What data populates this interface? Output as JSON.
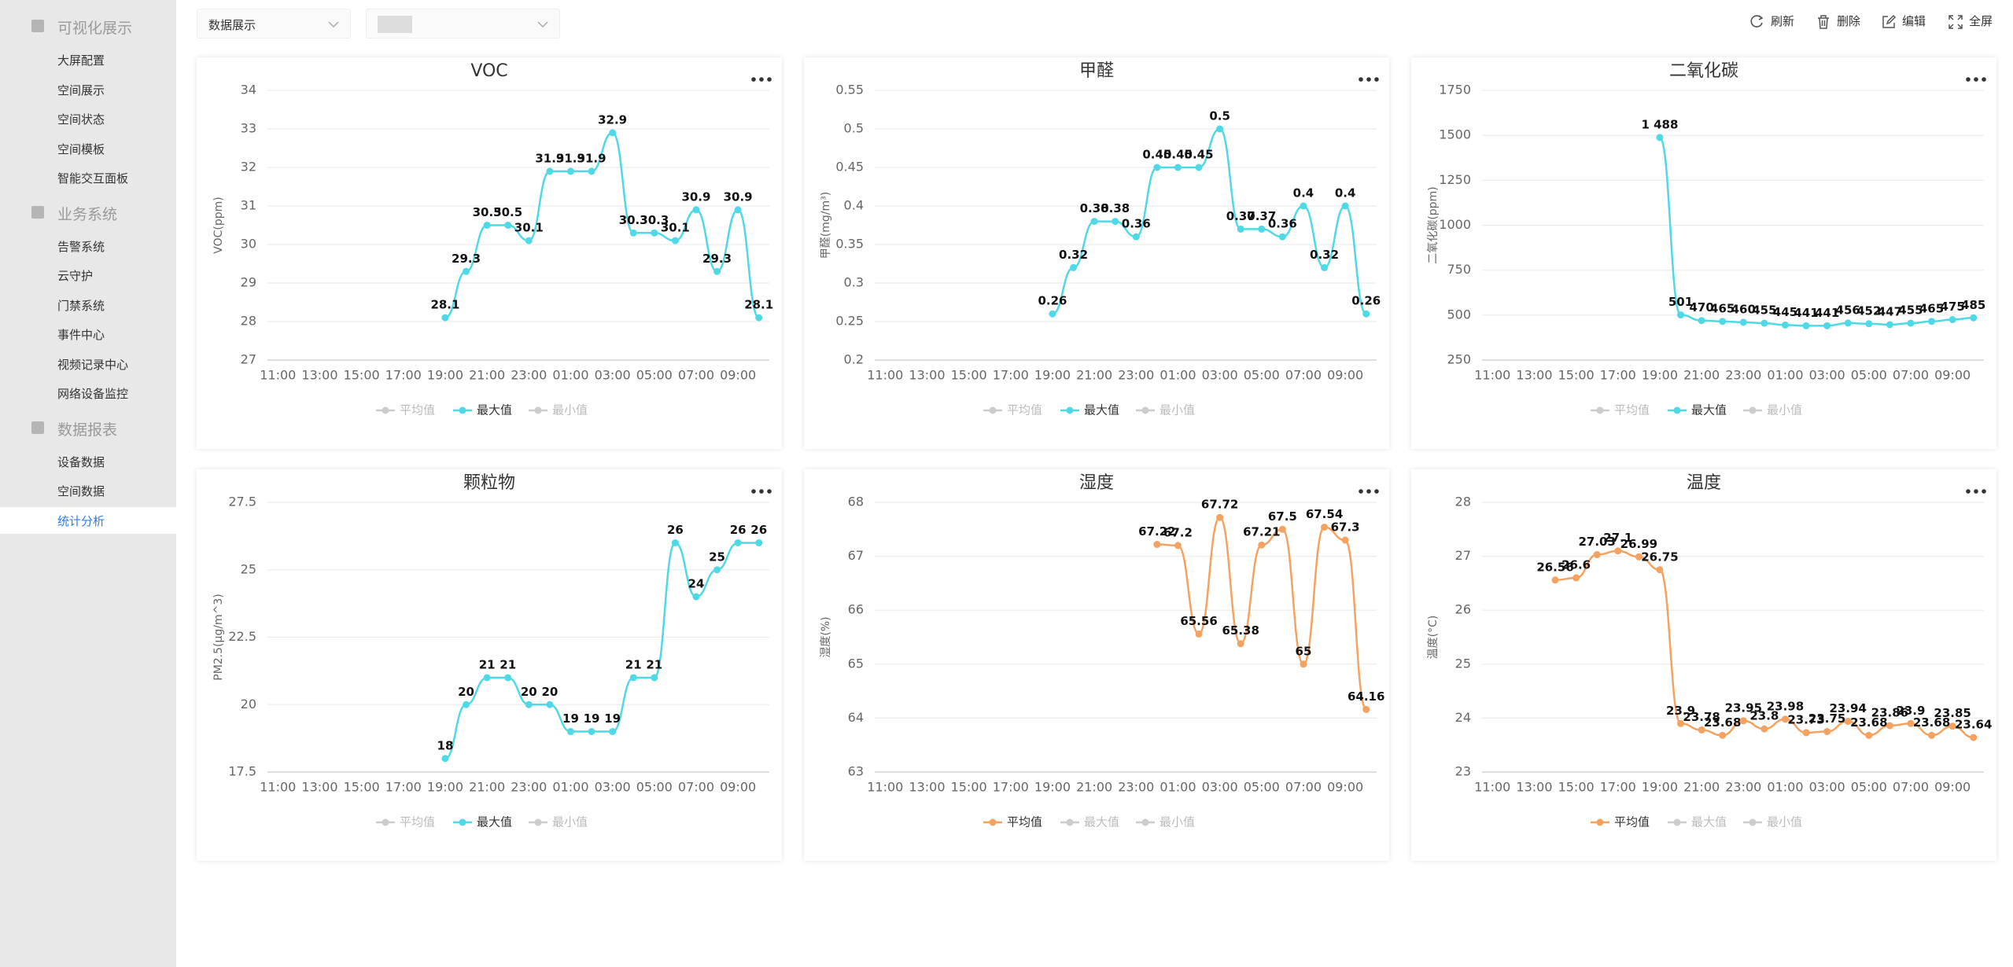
{
  "sidebar": [
    {
      "title": "可视化展示",
      "items": [
        {
          "label": "大屏配置"
        },
        {
          "label": "空间展示"
        },
        {
          "label": "空间状态"
        },
        {
          "label": "空间模板"
        },
        {
          "label": "智能交互面板"
        }
      ]
    },
    {
      "title": "业务系统",
      "items": [
        {
          "label": "告警系统"
        },
        {
          "label": "云守护"
        },
        {
          "label": "门禁系统"
        },
        {
          "label": "事件中心"
        },
        {
          "label": "视频记录中心"
        },
        {
          "label": "网络设备监控"
        }
      ]
    },
    {
      "title": "数据报表",
      "items": [
        {
          "label": "设备数据"
        },
        {
          "label": "空间数据"
        },
        {
          "label": "统计分析",
          "active": true
        }
      ]
    }
  ],
  "toolbar": {
    "select": "数据展示",
    "actions": [
      "刷新",
      "删除",
      "编辑",
      "全屏"
    ]
  },
  "chart_data": [
    {
      "type": "line",
      "title": "VOC",
      "ylabel": "VOC(ppm)",
      "legend": [
        "平均值",
        "最大值",
        "最小值"
      ],
      "categories": [
        "11:00",
        null,
        "13:00",
        null,
        "15:00",
        null,
        "17:00",
        null,
        "19:00",
        null,
        "21:00",
        null,
        "23:00",
        null,
        "01:00",
        null,
        "03:00",
        null,
        "05:00",
        null,
        "07:00",
        null,
        "09:00",
        null
      ],
      "series": [
        {
          "name": "最大值",
          "color": "#4fd9e6",
          "values": [
            null,
            null,
            null,
            null,
            null,
            null,
            null,
            null,
            28.1,
            29.3,
            30.5,
            30.5,
            30.1,
            31.9,
            31.9,
            31.9,
            32.9,
            30.3,
            30.3,
            30.1,
            30.9,
            29.3,
            30.9,
            28.1
          ]
        }
      ],
      "ylim": [
        27,
        34
      ],
      "yticks": [
        27,
        28,
        29,
        30,
        31,
        32,
        33,
        34
      ],
      "grid": true
    },
    {
      "type": "line",
      "title": "甲醛",
      "ylabel": "甲醛(mg/m³)",
      "legend": [
        "平均值",
        "最大值",
        "最小值"
      ],
      "categories": [
        "11:00",
        null,
        "13:00",
        null,
        "15:00",
        null,
        "17:00",
        null,
        "19:00",
        null,
        "21:00",
        null,
        "23:00",
        null,
        "01:00",
        null,
        "03:00",
        null,
        "05:00",
        null,
        "07:00",
        null,
        "09:00",
        null
      ],
      "series": [
        {
          "name": "最大值",
          "color": "#4fd9e6",
          "values": [
            null,
            null,
            null,
            null,
            null,
            null,
            null,
            null,
            0.26,
            0.32,
            0.38,
            0.38,
            0.36,
            0.45,
            0.45,
            0.45,
            0.5,
            0.37,
            0.37,
            0.36,
            0.4,
            0.32,
            0.4,
            0.26
          ]
        }
      ],
      "ylim": [
        0.2,
        0.55
      ],
      "yticks": [
        0.2,
        0.25,
        0.3,
        0.35,
        0.4,
        0.45,
        0.5,
        0.55
      ],
      "grid": true
    },
    {
      "type": "line",
      "title": "二氧化碳",
      "ylabel": "二氧化碳(ppm)",
      "legend": [
        "平均值",
        "最大值",
        "最小值"
      ],
      "categories": [
        "11:00",
        null,
        "13:00",
        null,
        "15:00",
        null,
        "17:00",
        null,
        "19:00",
        null,
        "21:00",
        null,
        "23:00",
        null,
        "01:00",
        null,
        "03:00",
        null,
        "05:00",
        null,
        "07:00",
        null,
        "09:00",
        null
      ],
      "series": [
        {
          "name": "最大值",
          "color": "#4fd9e6",
          "values": [
            null,
            null,
            null,
            null,
            null,
            null,
            null,
            null,
            1488,
            501,
            470,
            465,
            460,
            455,
            445,
            441,
            441,
            456,
            452,
            447,
            455,
            465,
            475,
            485
          ],
          "value_labels": [
            null,
            null,
            null,
            null,
            null,
            null,
            null,
            null,
            "1 488",
            "501",
            "470",
            "465",
            "460",
            "455",
            "445",
            "441",
            "441",
            "456",
            "452",
            "447",
            "455",
            "465",
            "475",
            "485"
          ]
        }
      ],
      "ylim": [
        250,
        1750
      ],
      "yticks": [
        250,
        500,
        750,
        1000,
        1250,
        1500,
        1750
      ],
      "grid": true
    },
    {
      "type": "line",
      "title": "颗粒物",
      "ylabel": "PM2.5(μg/m^3)",
      "legend": [
        "平均值",
        "最大值",
        "最小值"
      ],
      "categories": [
        "11:00",
        null,
        "13:00",
        null,
        "15:00",
        null,
        "17:00",
        null,
        "19:00",
        null,
        "21:00",
        null,
        "23:00",
        null,
        "01:00",
        null,
        "03:00",
        null,
        "05:00",
        null,
        "07:00",
        null,
        "09:00",
        null
      ],
      "series": [
        {
          "name": "最大值",
          "color": "#4fd9e6",
          "values": [
            null,
            null,
            null,
            null,
            null,
            null,
            null,
            null,
            18,
            20,
            21,
            21,
            20,
            20,
            19,
            19,
            19,
            21,
            21,
            26,
            24,
            25,
            26,
            26
          ]
        }
      ],
      "ylim": [
        17.5,
        27.5
      ],
      "yticks": [
        17.5,
        20,
        22.5,
        25,
        27.5
      ],
      "grid": true
    },
    {
      "type": "line",
      "title": "湿度",
      "ylabel": "湿度(%)",
      "legend": [
        "平均值",
        "最大值",
        "最小值"
      ],
      "categories": [
        "11:00",
        null,
        "13:00",
        null,
        "15:00",
        null,
        "17:00",
        null,
        "19:00",
        null,
        "21:00",
        null,
        "23:00",
        null,
        "01:00",
        null,
        "03:00",
        null,
        "05:00",
        null,
        "07:00",
        null,
        "09:00",
        null
      ],
      "series": [
        {
          "name": "平均值",
          "color": "#f5a261",
          "values": [
            null,
            null,
            null,
            null,
            null,
            null,
            null,
            null,
            null,
            null,
            null,
            null,
            null,
            67.22,
            67.2,
            65.56,
            67.72,
            65.38,
            67.21,
            67.5,
            65,
            67.54,
            67.3,
            64.16
          ]
        }
      ],
      "ylim": [
        63,
        68
      ],
      "yticks": [
        63,
        64,
        65,
        66,
        67,
        68
      ],
      "grid": true
    },
    {
      "type": "line",
      "title": "温度",
      "ylabel": "温度(°C)",
      "legend": [
        "平均值",
        "最大值",
        "最小值"
      ],
      "categories": [
        "11:00",
        null,
        "13:00",
        null,
        "15:00",
        null,
        "17:00",
        null,
        "19:00",
        null,
        "21:00",
        null,
        "23:00",
        null,
        "01:00",
        null,
        "03:00",
        null,
        "05:00",
        null,
        "07:00",
        null,
        "09:00",
        null
      ],
      "series": [
        {
          "name": "平均值",
          "color": "#f5a261",
          "values": [
            null,
            null,
            null,
            26.56,
            26.6,
            27.03,
            27.1,
            26.99,
            26.75,
            23.9,
            23.78,
            23.68,
            23.95,
            23.8,
            23.98,
            23.73,
            23.75,
            23.94,
            23.68,
            23.86,
            23.9,
            23.68,
            23.85,
            23.64
          ]
        }
      ],
      "ylim": [
        23,
        28
      ],
      "yticks": [
        23,
        24,
        25,
        26,
        27,
        28
      ],
      "grid": true
    }
  ]
}
